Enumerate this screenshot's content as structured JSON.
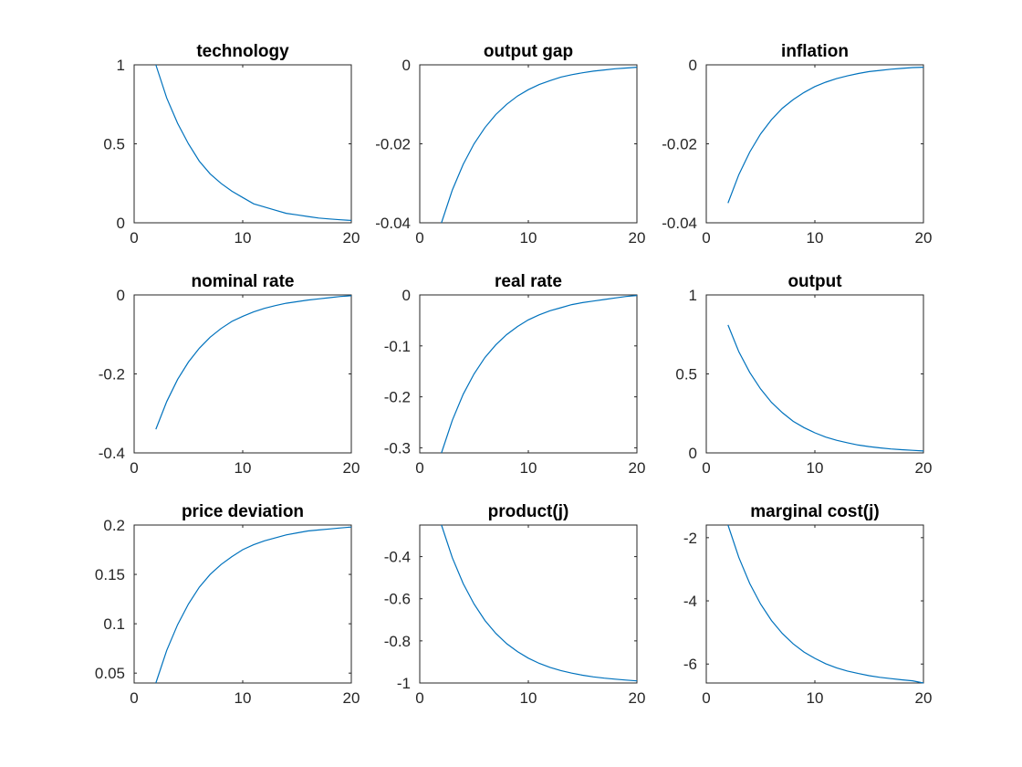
{
  "line_color": "#0072BD",
  "chart_data": [
    {
      "type": "line",
      "title": "technology",
      "xlim": [
        0,
        20
      ],
      "ylim": [
        0,
        1
      ],
      "xticks": [
        0,
        10,
        20
      ],
      "xtick_labels": [
        "0",
        "10",
        "20"
      ],
      "yticks": [
        0,
        0.5,
        1
      ],
      "ytick_labels": [
        "0",
        "0.5",
        "1"
      ],
      "x": [
        2,
        3,
        4,
        5,
        6,
        7,
        8,
        9,
        10,
        11,
        12,
        13,
        14,
        15,
        16,
        17,
        18,
        19,
        20
      ],
      "y": [
        1.0,
        0.79,
        0.63,
        0.5,
        0.39,
        0.31,
        0.25,
        0.2,
        0.16,
        0.12,
        0.1,
        0.08,
        0.06,
        0.05,
        0.04,
        0.03,
        0.024,
        0.019,
        0.015
      ]
    },
    {
      "type": "line",
      "title": "output gap",
      "xlim": [
        0,
        20
      ],
      "ylim": [
        -0.04,
        0
      ],
      "xticks": [
        0,
        10,
        20
      ],
      "xtick_labels": [
        "0",
        "10",
        "20"
      ],
      "yticks": [
        -0.04,
        -0.02,
        0
      ],
      "ytick_labels": [
        "-0.04",
        "-0.02",
        "0"
      ],
      "x": [
        2,
        3,
        4,
        5,
        6,
        7,
        8,
        9,
        10,
        11,
        12,
        13,
        14,
        15,
        16,
        17,
        18,
        19,
        20
      ],
      "y": [
        -0.04,
        -0.0317,
        -0.0252,
        -0.02,
        -0.0159,
        -0.0126,
        -0.01,
        -0.0079,
        -0.0063,
        -0.005,
        -0.004,
        -0.0031,
        -0.0025,
        -0.002,
        -0.0016,
        -0.0013,
        -0.001,
        -0.0008,
        -0.0006
      ]
    },
    {
      "type": "line",
      "title": "inflation",
      "xlim": [
        0,
        20
      ],
      "ylim": [
        -0.04,
        0
      ],
      "xticks": [
        0,
        10,
        20
      ],
      "xtick_labels": [
        "0",
        "10",
        "20"
      ],
      "yticks": [
        -0.04,
        -0.02,
        0
      ],
      "ytick_labels": [
        "-0.04",
        "-0.02",
        "0"
      ],
      "x": [
        2,
        3,
        4,
        5,
        6,
        7,
        8,
        9,
        10,
        11,
        12,
        13,
        14,
        15,
        16,
        17,
        18,
        19,
        20
      ],
      "y": [
        -0.035,
        -0.0278,
        -0.0221,
        -0.0175,
        -0.0139,
        -0.011,
        -0.0088,
        -0.007,
        -0.0055,
        -0.0044,
        -0.0035,
        -0.0028,
        -0.0022,
        -0.0017,
        -0.0014,
        -0.0011,
        -0.0009,
        -0.0007,
        -0.0006
      ]
    },
    {
      "type": "line",
      "title": "nominal rate",
      "xlim": [
        0,
        20
      ],
      "ylim": [
        -0.4,
        0
      ],
      "xticks": [
        0,
        10,
        20
      ],
      "xtick_labels": [
        "0",
        "10",
        "20"
      ],
      "yticks": [
        -0.4,
        -0.2,
        0
      ],
      "ytick_labels": [
        "-0.4",
        "-0.2",
        "0"
      ],
      "x": [
        2,
        3,
        4,
        5,
        6,
        7,
        8,
        9,
        10,
        11,
        12,
        13,
        14,
        15,
        16,
        17,
        18,
        19,
        20
      ],
      "y": [
        -0.34,
        -0.27,
        -0.214,
        -0.17,
        -0.135,
        -0.107,
        -0.085,
        -0.067,
        -0.054,
        -0.043,
        -0.034,
        -0.027,
        -0.021,
        -0.017,
        -0.013,
        -0.01,
        -0.007,
        -0.004,
        -0.002
      ]
    },
    {
      "type": "line",
      "title": "real rate",
      "xlim": [
        0,
        20
      ],
      "ylim": [
        -0.31,
        0
      ],
      "xticks": [
        0,
        10,
        20
      ],
      "xtick_labels": [
        "0",
        "10",
        "20"
      ],
      "yticks": [
        -0.3,
        -0.2,
        -0.1,
        0
      ],
      "ytick_labels": [
        "-0.3",
        "-0.2",
        "-0.1",
        "0"
      ],
      "x": [
        2,
        3,
        4,
        5,
        6,
        7,
        8,
        9,
        10,
        11,
        12,
        13,
        14,
        15,
        16,
        17,
        18,
        19,
        20
      ],
      "y": [
        -0.31,
        -0.246,
        -0.195,
        -0.155,
        -0.123,
        -0.098,
        -0.078,
        -0.062,
        -0.049,
        -0.039,
        -0.031,
        -0.025,
        -0.019,
        -0.015,
        -0.012,
        -0.009,
        -0.006,
        -0.003,
        -0.001
      ]
    },
    {
      "type": "line",
      "title": "output",
      "xlim": [
        0,
        20
      ],
      "ylim": [
        0,
        1
      ],
      "xticks": [
        0,
        10,
        20
      ],
      "xtick_labels": [
        "0",
        "10",
        "20"
      ],
      "yticks": [
        0,
        0.5,
        1
      ],
      "ytick_labels": [
        "0",
        "0.5",
        "1"
      ],
      "x": [
        2,
        3,
        4,
        5,
        6,
        7,
        8,
        9,
        10,
        11,
        12,
        13,
        14,
        15,
        16,
        17,
        18,
        19,
        20
      ],
      "y": [
        0.81,
        0.64,
        0.51,
        0.405,
        0.32,
        0.255,
        0.2,
        0.16,
        0.127,
        0.1,
        0.08,
        0.064,
        0.05,
        0.04,
        0.032,
        0.025,
        0.02,
        0.016,
        0.012
      ]
    },
    {
      "type": "line",
      "title": "price deviation",
      "xlim": [
        0,
        20
      ],
      "ylim": [
        0.04,
        0.2
      ],
      "xticks": [
        0,
        10,
        20
      ],
      "xtick_labels": [
        "0",
        "10",
        "20"
      ],
      "yticks": [
        0.05,
        0.1,
        0.15,
        0.2
      ],
      "ytick_labels": [
        "0.05",
        "0.1",
        "0.15",
        "0.2"
      ],
      "x": [
        2,
        3,
        4,
        5,
        6,
        7,
        8,
        9,
        10,
        11,
        12,
        13,
        14,
        15,
        16,
        17,
        18,
        19,
        20
      ],
      "y": [
        0.04,
        0.073,
        0.099,
        0.12,
        0.137,
        0.15,
        0.16,
        0.168,
        0.175,
        0.18,
        0.184,
        0.187,
        0.19,
        0.192,
        0.194,
        0.195,
        0.196,
        0.197,
        0.198
      ]
    },
    {
      "type": "line",
      "title": "product(j)",
      "xlim": [
        0,
        20
      ],
      "ylim": [
        -1,
        -0.25
      ],
      "xticks": [
        0,
        10,
        20
      ],
      "xtick_labels": [
        "0",
        "10",
        "20"
      ],
      "yticks": [
        -1,
        -0.8,
        -0.6,
        -0.4
      ],
      "ytick_labels": [
        "-1",
        "-0.8",
        "-0.6",
        "-0.4"
      ],
      "x": [
        2,
        3,
        4,
        5,
        6,
        7,
        8,
        9,
        10,
        11,
        12,
        13,
        14,
        15,
        16,
        17,
        18,
        19,
        20
      ],
      "y": [
        -0.25,
        -0.405,
        -0.528,
        -0.625,
        -0.703,
        -0.764,
        -0.813,
        -0.851,
        -0.882,
        -0.907,
        -0.926,
        -0.941,
        -0.953,
        -0.963,
        -0.971,
        -0.977,
        -0.982,
        -0.986,
        -0.99
      ]
    },
    {
      "type": "line",
      "title": "marginal cost(j)",
      "xlim": [
        0,
        20
      ],
      "ylim": [
        -6.6,
        -1.6
      ],
      "xticks": [
        0,
        10,
        20
      ],
      "xtick_labels": [
        "0",
        "10",
        "20"
      ],
      "yticks": [
        -6,
        -4,
        -2
      ],
      "ytick_labels": [
        "-6",
        "-4",
        "-2"
      ],
      "x": [
        2,
        3,
        4,
        5,
        6,
        7,
        8,
        9,
        10,
        11,
        12,
        13,
        14,
        15,
        16,
        17,
        18,
        19,
        20
      ],
      "y": [
        -1.6,
        -2.63,
        -3.45,
        -4.1,
        -4.62,
        -5.03,
        -5.36,
        -5.62,
        -5.82,
        -5.99,
        -6.12,
        -6.22,
        -6.3,
        -6.37,
        -6.42,
        -6.46,
        -6.5,
        -6.53,
        -6.6
      ]
    }
  ]
}
